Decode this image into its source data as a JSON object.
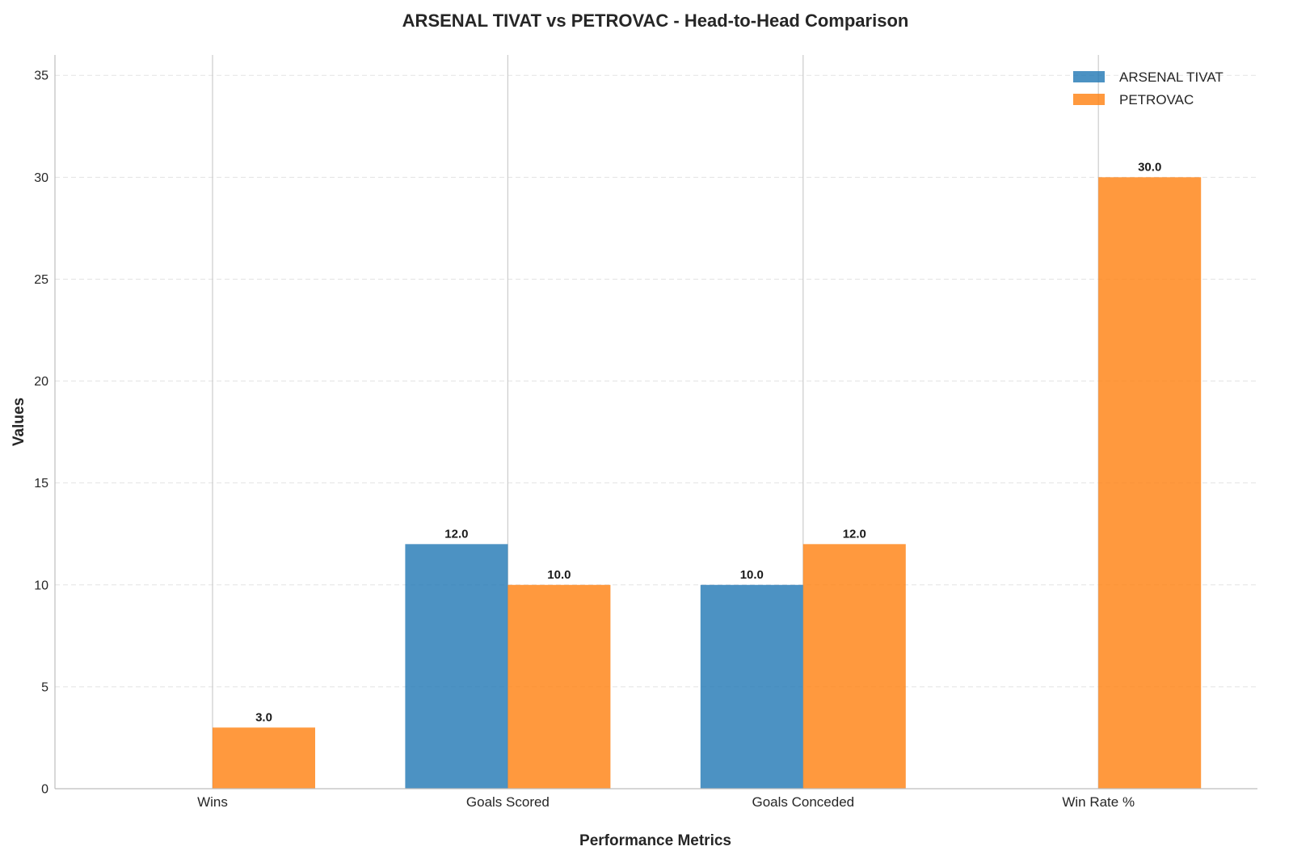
{
  "chart_data": {
    "type": "bar",
    "title": "ARSENAL TIVAT vs PETROVAC - Head-to-Head Comparison",
    "xlabel": "Performance Metrics",
    "ylabel": "Values",
    "categories": [
      "Wins",
      "Goals Scored",
      "Goals Conceded",
      "Win Rate %"
    ],
    "series": [
      {
        "name": "ARSENAL TIVAT",
        "color": "#1f77b4",
        "values": [
          0,
          12,
          10,
          0
        ]
      },
      {
        "name": "PETROVAC",
        "color": "#ff7f0e",
        "values": [
          3,
          10,
          12,
          30
        ]
      }
    ],
    "data_labels": [
      [
        "",
        "12.0",
        "10.0",
        ""
      ],
      [
        "3.0",
        "10.0",
        "12.0",
        "30.0"
      ]
    ],
    "ylim": [
      0,
      36
    ],
    "yticks": [
      0,
      5,
      10,
      15,
      20,
      25,
      30,
      35
    ],
    "ytick_labels": [
      "0",
      "5",
      "10",
      "15",
      "20",
      "25",
      "30",
      "35"
    ],
    "grid": true,
    "legend_position": "top-right"
  }
}
